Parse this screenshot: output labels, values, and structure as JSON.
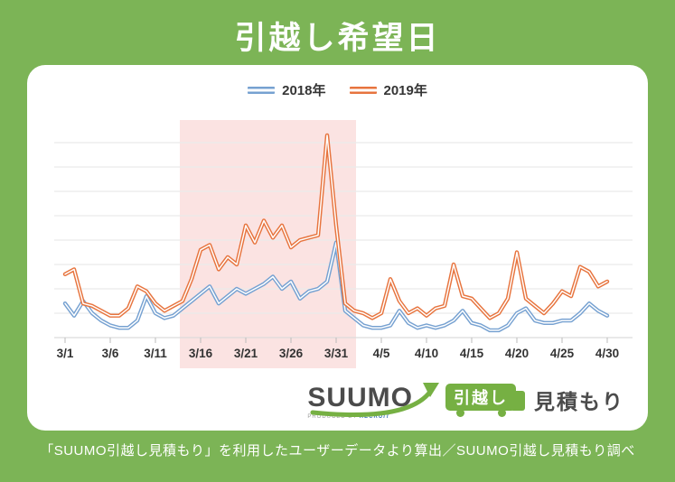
{
  "header": {
    "title": "引越し希望日"
  },
  "legend": {
    "items": [
      {
        "label": "2018年",
        "color": "#76a1d1"
      },
      {
        "label": "2019年",
        "color": "#e7743e"
      }
    ]
  },
  "chart_data": {
    "type": "line",
    "title": "引越し希望日",
    "xlabel": "",
    "ylabel": "",
    "grid": true,
    "legend_position": "top",
    "y_axis_labels_visible": false,
    "ylim": [
      0,
      90
    ],
    "gridline_step": 10,
    "x": [
      "3/1",
      "3/2",
      "3/3",
      "3/4",
      "3/5",
      "3/6",
      "3/7",
      "3/8",
      "3/9",
      "3/10",
      "3/11",
      "3/12",
      "3/13",
      "3/14",
      "3/15",
      "3/16",
      "3/17",
      "3/18",
      "3/19",
      "3/20",
      "3/21",
      "3/22",
      "3/23",
      "3/24",
      "3/25",
      "3/26",
      "3/27",
      "3/28",
      "3/29",
      "3/30",
      "3/31",
      "4/1",
      "4/2",
      "4/3",
      "4/4",
      "4/5",
      "4/6",
      "4/7",
      "4/8",
      "4/9",
      "4/10",
      "4/11",
      "4/12",
      "4/13",
      "4/14",
      "4/15",
      "4/16",
      "4/17",
      "4/18",
      "4/19",
      "4/20",
      "4/21",
      "4/22",
      "4/23",
      "4/24",
      "4/25",
      "4/26",
      "4/27",
      "4/28",
      "4/29",
      "4/30"
    ],
    "x_tick_labels": [
      "3/1",
      "3/6",
      "3/11",
      "3/16",
      "3/21",
      "3/26",
      "3/31",
      "4/5",
      "4/10",
      "4/15",
      "4/20",
      "4/25",
      "4/30"
    ],
    "x_tick_days": [
      0,
      5,
      10,
      15,
      20,
      25,
      30,
      35,
      40,
      45,
      50,
      55,
      60
    ],
    "highlight": {
      "from_day_index": 12.7,
      "to_day_index": 32.2,
      "from_label": "3/14",
      "to_label": "4/2",
      "color": "#fbe3e2"
    },
    "series": [
      {
        "name": "2018年",
        "color": "#76a1d1",
        "values": [
          14,
          9,
          15,
          10,
          7,
          5,
          4,
          4,
          7,
          17,
          10,
          8,
          9,
          12,
          15,
          18,
          21,
          14,
          17,
          20,
          18,
          20,
          22,
          25,
          20,
          23,
          16,
          19,
          20,
          23,
          39,
          11,
          8,
          5,
          4,
          4,
          5,
          11,
          6,
          4,
          5,
          4,
          5,
          7,
          11,
          6,
          5,
          3,
          3,
          5,
          10,
          12,
          7,
          6,
          6,
          7,
          7,
          10,
          14,
          11,
          9
        ]
      },
      {
        "name": "2019年",
        "color": "#e7743e",
        "values": [
          26,
          28,
          14,
          13,
          11,
          9,
          9,
          12,
          21,
          19,
          14,
          11,
          13,
          15,
          24,
          36,
          38,
          28,
          33,
          30,
          46,
          39,
          48,
          41,
          46,
          37,
          40,
          41,
          42,
          83,
          46,
          14,
          11,
          10,
          8,
          10,
          24,
          15,
          10,
          12,
          9,
          12,
          13,
          30,
          17,
          16,
          12,
          8,
          10,
          16,
          35,
          16,
          13,
          10,
          14,
          19,
          17,
          29,
          27,
          21,
          23
        ]
      }
    ],
    "peak_annotations": [
      {
        "series": "2019年",
        "x": "3/30",
        "value": 83
      },
      {
        "series": "2018年",
        "x": "3/31",
        "value": 39
      }
    ]
  },
  "logo": {
    "brand": "SUUMO",
    "produced_by_prefix": "PRODUCED BY",
    "produced_by_name": "RECRUIT",
    "badge": "引越し",
    "suffix": "見積もり"
  },
  "footer": {
    "caption": "「SUUMO引越し見積もり」を利用したユーザーデータより算出／SUUMO引越し見積もり調べ"
  }
}
